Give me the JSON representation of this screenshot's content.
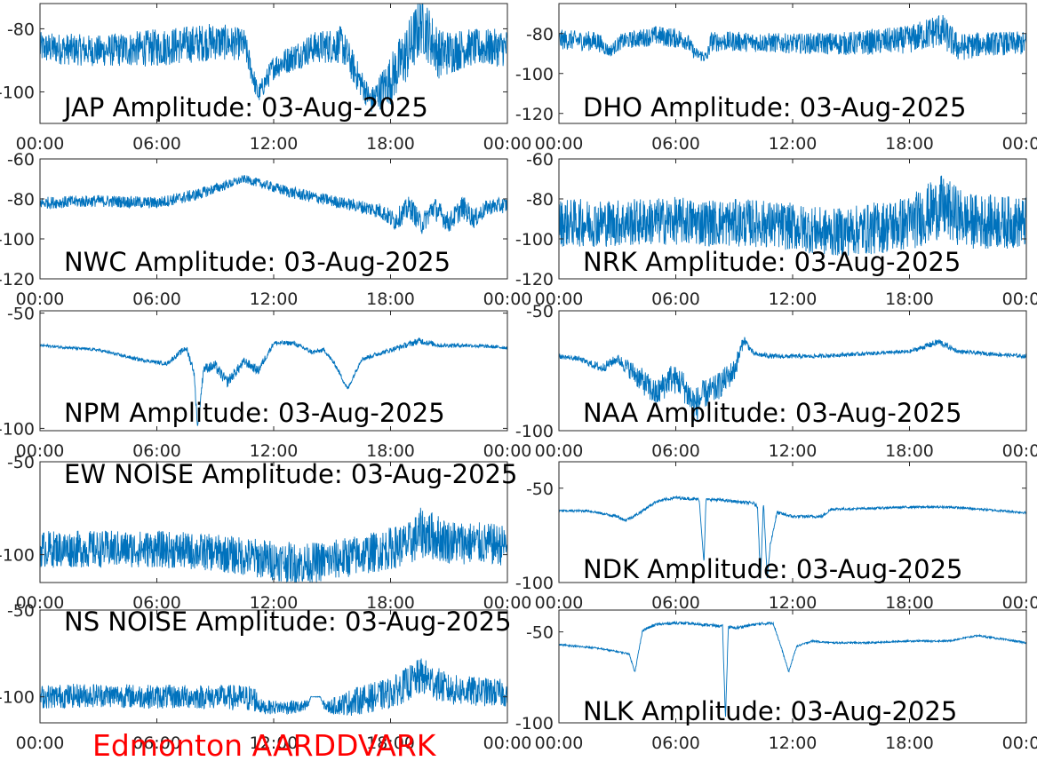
{
  "footer_label": "Edmonton AARDDVARK",
  "colors": {
    "series": "#0072bd",
    "footer": "#ff0000",
    "axis": "#262626"
  },
  "chart_data": [
    {
      "type": "line",
      "title": "JAP Amplitude: 03-Aug-2025",
      "x_ticks": [
        "00:00",
        "06:00",
        "12:00",
        "18:00",
        "00:00"
      ],
      "xlim": [
        0,
        24
      ],
      "y_ticks": [
        "-80",
        "-100"
      ],
      "y_tick_values": [
        -80,
        -100
      ],
      "ylim": [
        -110,
        -72
      ],
      "series": [
        {
          "x": [
            0,
            3,
            6,
            9,
            10.5,
            11.2,
            12,
            14,
            15.5,
            16.3,
            17,
            18,
            19,
            19.6,
            20.5,
            22,
            24
          ],
          "y": [
            -86,
            -87,
            -86,
            -84,
            -85,
            -101,
            -92,
            -86,
            -85,
            -95,
            -103,
            -96,
            -86,
            -78,
            -88,
            -86,
            -86
          ],
          "noise": [
            5,
            5,
            6,
            6,
            5,
            3,
            4,
            5,
            6,
            5,
            4,
            8,
            10,
            10,
            8,
            6,
            6
          ]
        }
      ]
    },
    {
      "type": "line",
      "title": "DHO Amplitude: 03-Aug-2025",
      "x_ticks": [
        "00:00",
        "06:00",
        "12:00",
        "18:00",
        "00:00"
      ],
      "xlim": [
        0,
        24
      ],
      "y_ticks": [
        "-80",
        "-100",
        "-120"
      ],
      "y_tick_values": [
        -80,
        -100,
        -120
      ],
      "ylim": [
        -125,
        -65
      ],
      "series": [
        {
          "x": [
            0,
            2,
            2.6,
            3.2,
            5,
            6.5,
            7.0,
            7.6,
            7.8,
            9,
            12,
            15,
            18,
            19.6,
            20.5,
            22,
            24
          ],
          "y": [
            -83,
            -84,
            -89,
            -84,
            -81,
            -83,
            -90,
            -92,
            -84,
            -84,
            -85,
            -85,
            -83,
            -78,
            -87,
            -85,
            -85
          ],
          "noise": [
            5,
            5,
            3,
            4,
            5,
            5,
            3,
            3,
            5,
            5,
            5,
            6,
            7,
            9,
            7,
            6,
            6
          ]
        }
      ]
    },
    {
      "type": "line",
      "title": "NWC Amplitude: 03-Aug-2025",
      "x_ticks": [
        "00:00",
        "06:00",
        "12:00",
        "18:00",
        "00:00"
      ],
      "xlim": [
        0,
        24
      ],
      "y_ticks": [
        "-60",
        "-80",
        "-100",
        "-120"
      ],
      "y_tick_values": [
        -60,
        -80,
        -100,
        -120
      ],
      "ylim": [
        -120,
        -60
      ],
      "series": [
        {
          "x": [
            0,
            3,
            6,
            8,
            10.5,
            13,
            16,
            17.5,
            18.2,
            19,
            19.6,
            20.2,
            21,
            21.7,
            22.3,
            23,
            24
          ],
          "y": [
            -82,
            -81,
            -82,
            -78,
            -70,
            -77,
            -83,
            -86,
            -91,
            -84,
            -93,
            -84,
            -92,
            -84,
            -90,
            -84,
            -83
          ],
          "noise": [
            3,
            3,
            3,
            3,
            2,
            3,
            3,
            4,
            5,
            6,
            5,
            6,
            5,
            6,
            5,
            4,
            4
          ]
        }
      ]
    },
    {
      "type": "line",
      "title": "NRK Amplitude: 03-Aug-2025",
      "x_ticks": [
        "00:00",
        "06:00",
        "12:00",
        "18:00",
        "00:00"
      ],
      "xlim": [
        0,
        24
      ],
      "y_ticks": [
        "-60",
        "-80",
        "-100",
        "-120"
      ],
      "y_tick_values": [
        -60,
        -80,
        -100,
        -120
      ],
      "ylim": [
        -120,
        -60
      ],
      "series": [
        {
          "x": [
            0,
            3,
            6,
            8,
            10,
            12,
            14,
            16,
            18,
            19.6,
            21,
            24
          ],
          "y": [
            -92,
            -92,
            -91,
            -92,
            -92,
            -94,
            -97,
            -95,
            -92,
            -84,
            -91,
            -92
          ],
          "noise": [
            12,
            12,
            12,
            12,
            12,
            12,
            12,
            13,
            14,
            16,
            14,
            13
          ]
        }
      ]
    },
    {
      "type": "line",
      "title": "NPM Amplitude: 03-Aug-2025",
      "x_ticks": [
        "00:00",
        "06:00",
        "12:00",
        "18:00",
        "00:00"
      ],
      "xlim": [
        0,
        24
      ],
      "y_ticks": [
        "-50",
        "-100"
      ],
      "y_tick_values": [
        -50,
        -100
      ],
      "ylim": [
        -101,
        -49
      ],
      "series": [
        {
          "x": [
            0,
            3,
            5,
            6.5,
            7.5,
            7.9,
            8.1,
            8.4,
            9,
            9.6,
            10.5,
            11.2,
            12,
            13,
            14,
            14.6,
            15.2,
            15.8,
            16.5,
            18,
            19.5,
            20.5,
            22,
            24
          ],
          "y": [
            -64,
            -66,
            -70,
            -72,
            -65,
            -75,
            -100,
            -74,
            -73,
            -80,
            -71,
            -75,
            -63,
            -63,
            -67,
            -66,
            -73,
            -83,
            -70,
            -66,
            -62,
            -64,
            -64,
            -65
          ],
          "noise": [
            0.6,
            0.6,
            0.8,
            0.8,
            1.5,
            2,
            2,
            2,
            2.5,
            2.5,
            2,
            2,
            1,
            1,
            1,
            1,
            1,
            1,
            1,
            1,
            1.5,
            1,
            0.8,
            0.8
          ]
        }
      ]
    },
    {
      "type": "line",
      "title": "NAA Amplitude: 03-Aug-2025",
      "x_ticks": [
        "00:00",
        "06:00",
        "12:00",
        "18:00",
        "00:00"
      ],
      "xlim": [
        0,
        24
      ],
      "y_ticks": [
        "-50",
        "-100"
      ],
      "y_tick_values": [
        -50,
        -100
      ],
      "ylim": [
        -100,
        -50
      ],
      "series": [
        {
          "x": [
            0,
            1,
            2.2,
            3,
            4,
            5,
            5.7,
            6.3,
            7,
            7.4,
            8,
            9,
            9.5,
            10,
            11,
            13,
            18,
            19.5,
            20.5,
            24
          ],
          "y": [
            -69,
            -70,
            -74,
            -70,
            -77,
            -85,
            -78,
            -80,
            -90,
            -85,
            -83,
            -75,
            -62,
            -68,
            -69,
            -69,
            -67,
            -63,
            -67,
            -69
          ],
          "noise": [
            1,
            1,
            2,
            2,
            5,
            6,
            6,
            6,
            8,
            6,
            6,
            5,
            2,
            1,
            1,
            0.8,
            0.8,
            1.5,
            0.8,
            0.8
          ]
        }
      ]
    },
    {
      "type": "line",
      "title": "EW NOISE Amplitude: 03-Aug-2025",
      "x_ticks": [
        "00:00",
        "06:00",
        "12:00",
        "18:00",
        "00:00"
      ],
      "xlim": [
        0,
        24
      ],
      "y_ticks": [
        "-50",
        "-100"
      ],
      "y_tick_values": [
        -50,
        -100
      ],
      "ylim": [
        -115,
        -50
      ],
      "series": [
        {
          "x": [
            0,
            3,
            6,
            9,
            12,
            13.5,
            15,
            17,
            19,
            19.6,
            21,
            24
          ],
          "y": [
            -97,
            -97,
            -97,
            -99,
            -103,
            -105,
            -103,
            -99,
            -94,
            -88,
            -93,
            -95
          ],
          "noise": [
            10,
            10,
            10,
            10,
            11,
            11,
            11,
            11,
            12,
            14,
            12,
            11
          ]
        }
      ]
    },
    {
      "type": "line",
      "title": "NDK Amplitude: 03-Aug-2025",
      "x_ticks": [
        "00:00",
        "06:00",
        "12:00",
        "18:00",
        "00:00"
      ],
      "xlim": [
        0,
        24
      ],
      "y_ticks": [
        "-50",
        "-100"
      ],
      "y_tick_values": [
        -50,
        -100
      ],
      "ylim": [
        -100,
        -36
      ],
      "series": [
        {
          "x": [
            0,
            1.5,
            3,
            3.4,
            4.0,
            5,
            6,
            7.2,
            7.45,
            7.55,
            8,
            10,
            10.2,
            10.35,
            10.5,
            10.7,
            10.85,
            11.2,
            12,
            13.5,
            14,
            15,
            18,
            20,
            21.5,
            24
          ],
          "y": [
            -62,
            -62,
            -65,
            -67,
            -64,
            -57,
            -55,
            -56,
            -90,
            -56,
            -56,
            -58,
            -60,
            -99,
            -57,
            -98,
            -80,
            -63,
            -65,
            -65,
            -61,
            -61,
            -60,
            -60,
            -61,
            -63
          ],
          "noise": [
            0.6,
            0.6,
            0.8,
            0.8,
            0.8,
            0.8,
            0.8,
            0.8,
            0.5,
            0.5,
            0.8,
            0.8,
            1,
            0.5,
            1,
            0.5,
            1,
            1,
            0.8,
            0.8,
            0.8,
            0.6,
            0.6,
            0.6,
            0.6,
            0.6
          ]
        }
      ]
    },
    {
      "type": "line",
      "title": "NS NOISE Amplitude: 03-Aug-2025",
      "x_ticks": [
        "00:00",
        "06:00",
        "12:00",
        "18:00",
        "00:00"
      ],
      "xlim": [
        0,
        24
      ],
      "y_ticks": [
        "-50",
        "-100"
      ],
      "y_tick_values": [
        -50,
        -100
      ],
      "ylim": [
        -115,
        -50
      ],
      "series": [
        {
          "x": [
            0,
            3,
            6,
            9,
            11,
            11.4,
            13.6,
            13.8,
            13.9,
            14.4,
            14.5,
            14.8,
            16,
            18,
            19.6,
            21,
            24
          ],
          "y": [
            -100,
            -99,
            -100,
            -100,
            -101,
            -106,
            -106,
            -104,
            -100,
            -100,
            -104,
            -106,
            -103,
            -98,
            -88,
            -96,
            -98
          ],
          "noise": [
            7,
            7,
            7,
            7,
            8,
            4,
            4,
            2,
            0.2,
            0.2,
            2,
            4,
            8,
            9,
            11,
            9,
            8
          ]
        }
      ]
    },
    {
      "type": "line",
      "title": "NLK Amplitude: 03-Aug-2025",
      "x_ticks": [
        "00:00",
        "06:00",
        "12:00",
        "18:00",
        "00:00"
      ],
      "xlim": [
        0,
        24
      ],
      "y_ticks": [
        "-50",
        "-100"
      ],
      "y_tick_values": [
        -50,
        -100
      ],
      "ylim": [
        -100,
        -38
      ],
      "series": [
        {
          "x": [
            0,
            2,
            3.6,
            3.9,
            4.3,
            5,
            6,
            7.5,
            8.4,
            8.55,
            8.7,
            9,
            10,
            11,
            11.4,
            11.8,
            12.2,
            13,
            14,
            16,
            18,
            20,
            21.5,
            24
          ],
          "y": [
            -57,
            -59,
            -62,
            -72,
            -49,
            -46,
            -45,
            -46,
            -47,
            -98,
            -47,
            -48,
            -46,
            -45,
            -58,
            -72,
            -58,
            -55,
            -56,
            -56,
            -55,
            -55,
            -52,
            -56
          ],
          "noise": [
            0.5,
            0.5,
            0.5,
            0.5,
            0.8,
            0.8,
            0.8,
            0.8,
            0.8,
            0.3,
            0.8,
            0.8,
            0.8,
            0.8,
            0.5,
            0.5,
            0.5,
            0.5,
            0.5,
            0.5,
            0.5,
            0.5,
            0.5,
            0.5
          ]
        }
      ]
    }
  ]
}
